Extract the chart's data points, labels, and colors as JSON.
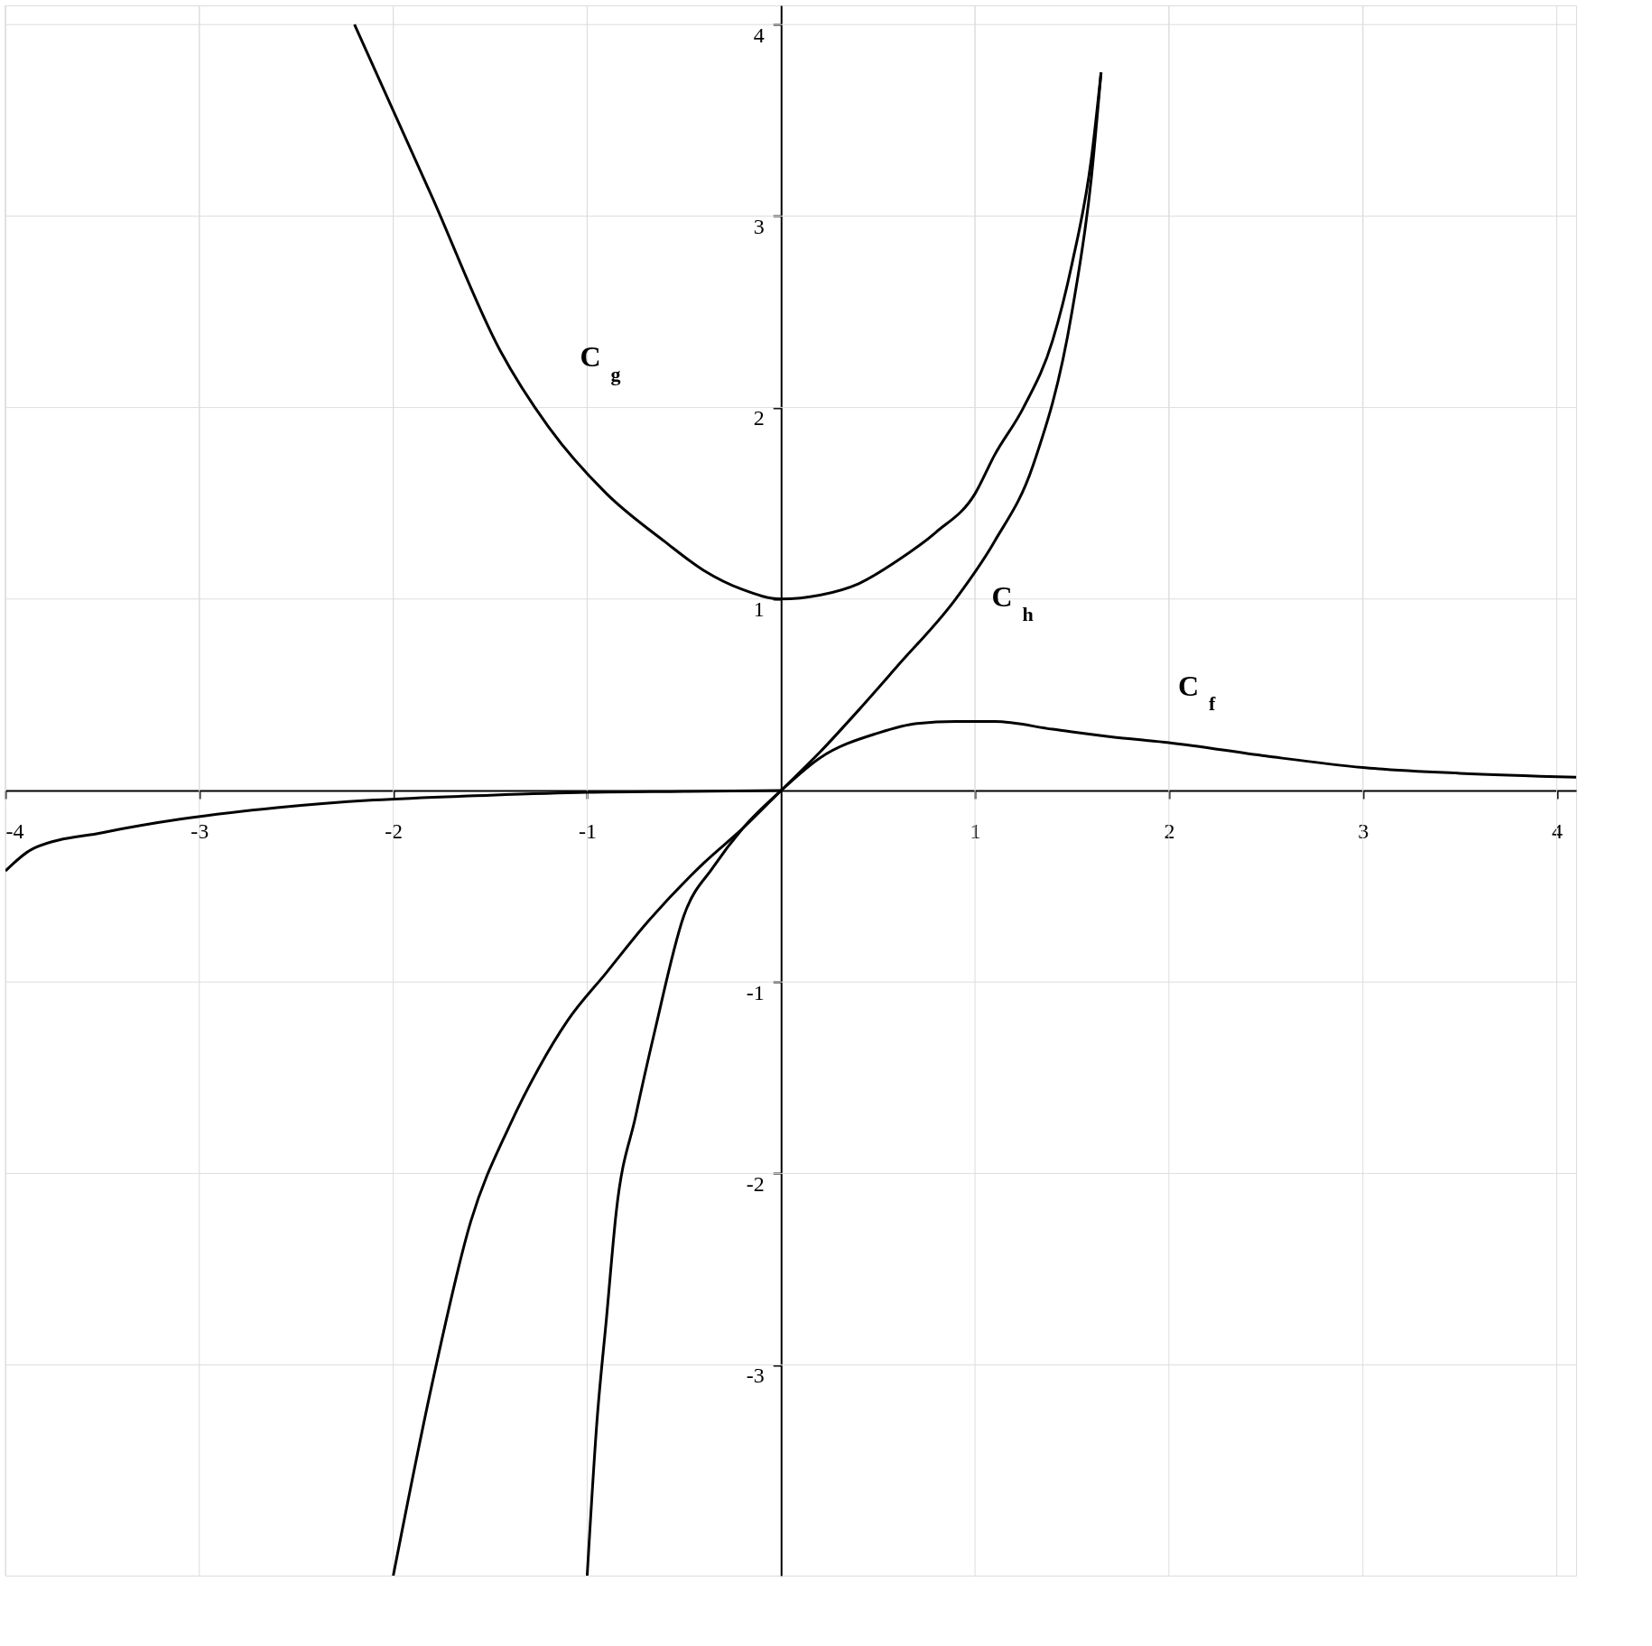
{
  "chart_data": {
    "type": "line",
    "xlim": [
      -4,
      4.1
    ],
    "ylim": [
      -4.1,
      4.1
    ],
    "xticks": [
      -4,
      -3,
      -2,
      -1,
      1,
      2,
      3,
      4
    ],
    "yticks": [
      -3,
      -2,
      -1,
      1,
      2,
      3,
      4
    ],
    "grid": true,
    "series": [
      {
        "name": "C$_{g}$",
        "color": "#000000",
        "x": [
          -2.2,
          -1.8,
          -1.45,
          -1.2,
          -0.9,
          -0.6,
          -0.4,
          -0.2,
          0,
          0.2,
          0.4,
          0.6,
          0.8,
          1.0,
          1.1,
          1.25,
          1.4,
          1.5,
          1.6,
          1.65
        ],
        "values": [
          4.0,
          3.1,
          2.3,
          1.9,
          1.55,
          1.3,
          1.15,
          1.05,
          1.0,
          1.02,
          1.08,
          1.2,
          1.35,
          1.55,
          1.75,
          2.0,
          2.35,
          2.75,
          3.3,
          3.75
        ]
      },
      {
        "name": "C$_{h}$",
        "color": "#000000",
        "x": [
          -2.0,
          -1.8,
          -1.6,
          -1.4,
          -1.25,
          -1.1,
          -0.9,
          -0.7,
          -0.4,
          -0.2,
          0,
          0.2,
          0.4,
          0.6,
          0.9,
          1.1,
          1.3,
          1.5,
          1.6,
          1.65
        ],
        "values": [
          -4.1,
          -3.1,
          -2.25,
          -1.75,
          -1.45,
          -1.2,
          -0.95,
          -0.7,
          -0.38,
          -0.2,
          0,
          0.2,
          0.42,
          0.65,
          1.0,
          1.3,
          1.7,
          2.5,
          3.2,
          3.75
        ]
      },
      {
        "name": "C$_{f}$",
        "color": "#000000",
        "x": [
          -1.0,
          -0.95,
          -0.9,
          -0.85,
          -0.75,
          -0.65,
          -0.5,
          -0.35,
          -0.2,
          0,
          0.2,
          0.5,
          0.7,
          0.9,
          1.1,
          1.4,
          1.7,
          2.0,
          2.5,
          3.0,
          3.5,
          4.1
        ],
        "values": [
          -4.1,
          -3.3,
          -2.75,
          -2.2,
          -1.7,
          -1.25,
          -0.65,
          -0.4,
          -0.2,
          0,
          0.17,
          0.3,
          0.35,
          0.36,
          0.36,
          0.32,
          0.28,
          0.25,
          0.18,
          0.12,
          0.09,
          0.07
        ]
      },
      {
        "color": "#000000",
        "x": [
          -4.0,
          -3.85,
          -3.5,
          -3.1,
          -2.6,
          -2.1,
          -1.5,
          -1.0,
          -0.5,
          0
        ],
        "values": [
          -0.42,
          -0.3,
          -0.22,
          -0.15,
          -0.09,
          -0.05,
          -0.025,
          -0.01,
          -0.005,
          0
        ]
      }
    ]
  }
}
